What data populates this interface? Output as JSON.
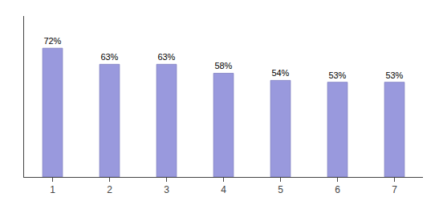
{
  "chart_data": {
    "type": "bar",
    "categories": [
      "1",
      "2",
      "3",
      "4",
      "5",
      "6",
      "7"
    ],
    "values": [
      72,
      63,
      63,
      58,
      54,
      53,
      53
    ],
    "value_labels": [
      "72%",
      "63%",
      "63%",
      "58%",
      "54%",
      "53%",
      "53%"
    ],
    "color": "#9999dd",
    "ylim": [
      0,
      90
    ],
    "data_labels": true,
    "tick_labels": "x",
    "grid": false
  }
}
